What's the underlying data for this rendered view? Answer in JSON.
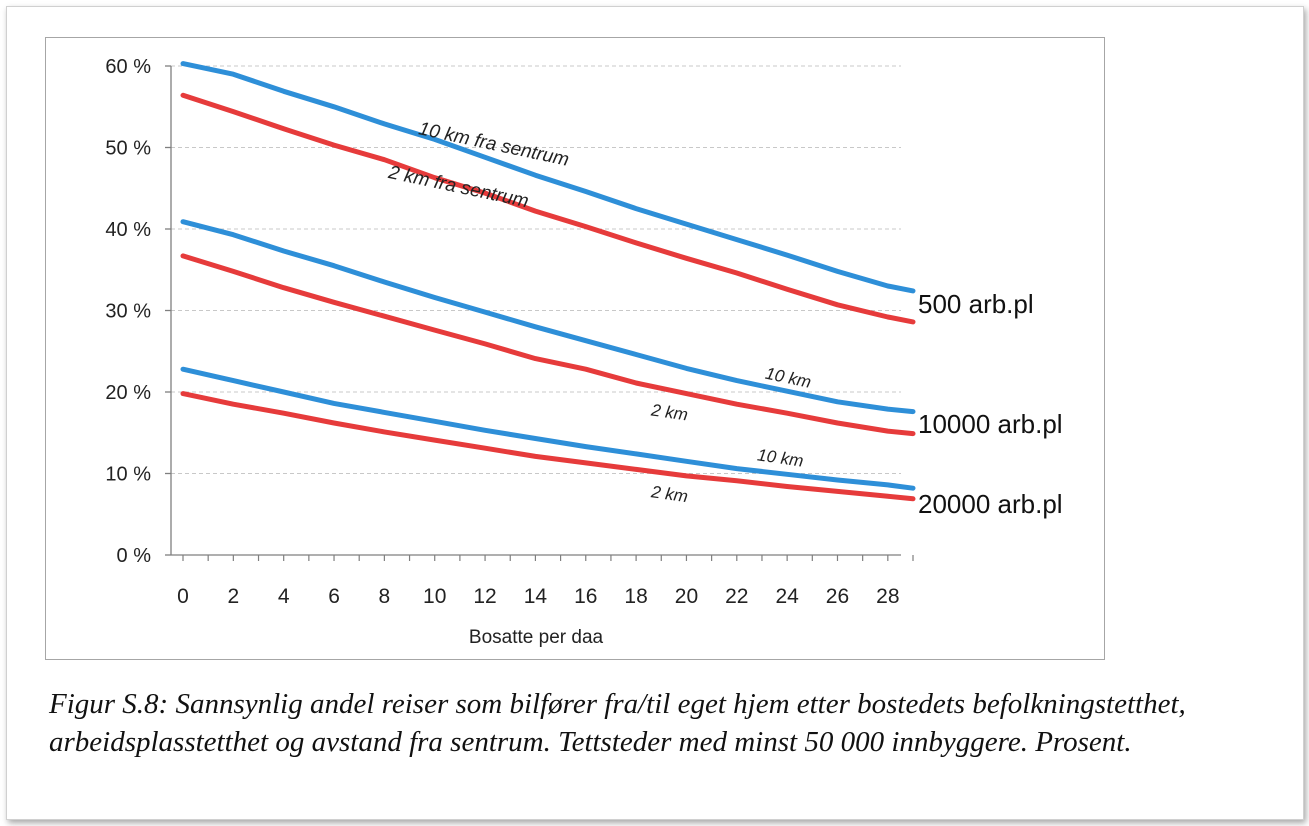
{
  "chart_data": {
    "type": "line",
    "title": "",
    "xlabel": "Bosatte per daa",
    "ylabel": "",
    "xlim": [
      0,
      29
    ],
    "ylim": [
      0,
      60
    ],
    "x_ticks": [
      0,
      2,
      4,
      6,
      8,
      10,
      12,
      14,
      16,
      18,
      20,
      22,
      24,
      26,
      28
    ],
    "y_ticks": [
      0,
      10,
      20,
      30,
      40,
      50,
      60
    ],
    "y_tick_labels": [
      "0 %",
      "10 %",
      "20 %",
      "30 %",
      "40 %",
      "50 %",
      "60 %"
    ],
    "grid": "horizontal dashed",
    "x": [
      0,
      2,
      4,
      6,
      8,
      10,
      12,
      14,
      16,
      18,
      20,
      22,
      24,
      26,
      28,
      29
    ],
    "series": [
      {
        "group": "500 arb.pl",
        "label": "10 km fra sentrum",
        "color": "#2e8fd8",
        "values": [
          60.3,
          59.0,
          56.9,
          55.0,
          52.9,
          51.0,
          48.8,
          46.6,
          44.6,
          42.5,
          40.6,
          38.7,
          36.8,
          34.8,
          33.0,
          32.4
        ]
      },
      {
        "group": "500 arb.pl",
        "label": "2 km fra sentrum",
        "color": "#e63b3b",
        "values": [
          56.4,
          54.4,
          52.3,
          50.3,
          48.5,
          46.3,
          44.4,
          42.2,
          40.3,
          38.3,
          36.4,
          34.6,
          32.6,
          30.7,
          29.2,
          28.6
        ]
      },
      {
        "group": "10000 arb.pl",
        "label": "10 km",
        "color": "#2e8fd8",
        "values": [
          40.9,
          39.3,
          37.3,
          35.5,
          33.5,
          31.6,
          29.8,
          28.0,
          26.3,
          24.6,
          22.9,
          21.4,
          20.1,
          18.8,
          17.9,
          17.6
        ]
      },
      {
        "group": "10000 arb.pl",
        "label": "2 km",
        "color": "#e63b3b",
        "values": [
          36.7,
          34.8,
          32.8,
          31.0,
          29.3,
          27.6,
          25.9,
          24.1,
          22.8,
          21.1,
          19.8,
          18.5,
          17.4,
          16.2,
          15.2,
          14.9
        ]
      },
      {
        "group": "20000 arb.pl",
        "label": "10 km",
        "color": "#2e8fd8",
        "values": [
          22.8,
          21.4,
          20.0,
          18.6,
          17.5,
          16.4,
          15.3,
          14.3,
          13.3,
          12.4,
          11.5,
          10.6,
          9.9,
          9.2,
          8.6,
          8.2
        ]
      },
      {
        "group": "20000 arb.pl",
        "label": "2 km",
        "color": "#e63b3b",
        "values": [
          19.8,
          18.5,
          17.4,
          16.2,
          15.1,
          14.1,
          13.1,
          12.1,
          11.3,
          10.5,
          9.7,
          9.1,
          8.4,
          7.8,
          7.2,
          6.9
        ]
      }
    ],
    "group_labels": [
      "500 arb.pl",
      "10000 arb.pl",
      "20000 arb.pl"
    ]
  },
  "caption": "Figur S.8: Sannsynlig andel reiser som bilfører fra/til eget hjem etter bostedets befolkningstetthet, arbeidsplasstetthet og avstand fra sentrum. Tettsteder med minst 50 000 innbyggere. Prosent."
}
